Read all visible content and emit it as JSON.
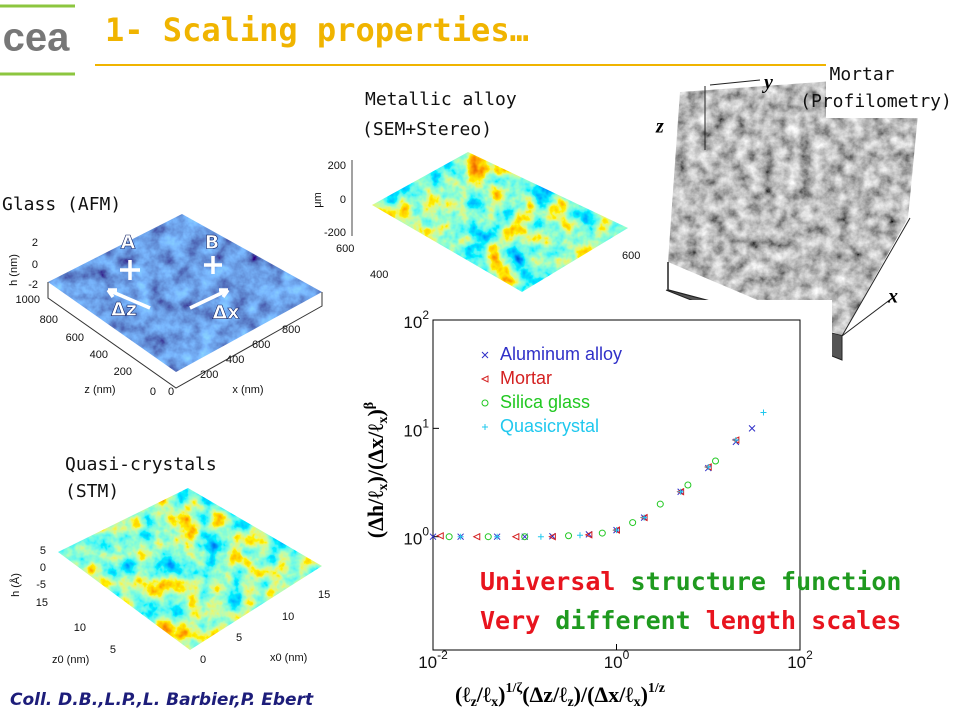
{
  "logo": {
    "text": "cea"
  },
  "header": {
    "title": "1- Scaling properties…"
  },
  "panels": {
    "mortar": {
      "label": [
        "Mortar",
        "(Profilometry)"
      ],
      "axes": [
        "z",
        "y",
        "x"
      ]
    },
    "metallic": {
      "label": [
        "Metallic alloy",
        "(SEM+Stereo)"
      ],
      "unit": "μm",
      "h_ticks": [
        "200",
        "0",
        "-200"
      ],
      "y_ticks": [
        "600",
        "400"
      ],
      "x_ticks": [
        "600"
      ]
    },
    "glass": {
      "label": [
        "Glass (AFM)"
      ],
      "h_label": "h (nm)",
      "h_ticks": [
        "2",
        "0",
        "-2"
      ],
      "z_ticks": [
        "1000",
        "800",
        "600",
        "400",
        "200",
        "0"
      ],
      "z_label": "z (nm)",
      "x_ticks": [
        "0",
        "200",
        "400",
        "600",
        "800"
      ],
      "x_label": "x (nm)",
      "points": [
        "A",
        "B"
      ],
      "deltas": [
        "Δz",
        "Δx"
      ]
    },
    "quasi": {
      "label": [
        "Quasi-crystals",
        "(STM)"
      ],
      "h_label": "h (Å)",
      "h_ticks": [
        "5",
        "0",
        "-5"
      ],
      "z_ticks": [
        "15",
        "10",
        "5"
      ],
      "z_label": "z0 (nm)",
      "x_ticks": [
        "15",
        "10",
        "5",
        "0"
      ],
      "x_label": "x0 (nm)"
    }
  },
  "chart_data": {
    "type": "scatter",
    "xscale": "log",
    "yscale": "log",
    "xlim": [
      0.01,
      100
    ],
    "ylim": [
      0.09,
      100
    ],
    "xticks": [
      {
        "value": 0.01,
        "label": "10",
        "exponent": "-2"
      },
      {
        "value": 1,
        "label": "10",
        "exponent": "0"
      },
      {
        "value": 100,
        "label": "10",
        "exponent": "2"
      }
    ],
    "yticks": [
      {
        "value": 1,
        "label": "10",
        "exponent": "0"
      },
      {
        "value": 10,
        "label": "10",
        "exponent": "1"
      },
      {
        "value": 100,
        "label": "10",
        "exponent": "2"
      }
    ],
    "ylabel": [
      {
        "text": "(Δh/ℓ"
      },
      {
        "text": "x",
        "shift": "sub"
      },
      {
        "text": ")/(Δx/ℓ"
      },
      {
        "text": "x",
        "shift": "sub"
      },
      {
        "text": ")"
      },
      {
        "text": "β",
        "shift": "sup"
      }
    ],
    "xlabel": [
      {
        "text": "(ℓ"
      },
      {
        "text": "z",
        "shift": "sub"
      },
      {
        "text": "/ℓ"
      },
      {
        "text": "x",
        "shift": "sub"
      },
      {
        "text": ")"
      },
      {
        "text": "1/ζ",
        "shift": "sup"
      },
      {
        "text": "(Δz/ℓ"
      },
      {
        "text": "z",
        "shift": "sub"
      },
      {
        "text": ")/(Δx/ℓ"
      },
      {
        "text": "x",
        "shift": "sub"
      },
      {
        "text": ")"
      },
      {
        "text": "1/z",
        "shift": "sup"
      }
    ],
    "legend": "upper left",
    "series": [
      {
        "name": "Aluminum alloy",
        "color": "#3030c8",
        "marker": "x",
        "x": [
          0.01,
          0.02,
          0.05,
          0.1,
          0.2,
          0.5,
          1,
          2,
          5,
          10,
          20,
          30
        ],
        "values": [
          1.0,
          1.0,
          1.0,
          1.0,
          1.01,
          1.05,
          1.15,
          1.5,
          2.6,
          4.3,
          7.5,
          10
        ]
      },
      {
        "name": "Mortar",
        "color": "#d42020",
        "marker": "triangle-left",
        "x": [
          0.012,
          0.03,
          0.08,
          0.2,
          0.5,
          1,
          2,
          5,
          10,
          20
        ],
        "values": [
          1.02,
          1.0,
          1.0,
          1.0,
          1.04,
          1.15,
          1.5,
          2.6,
          4.4,
          7.8
        ]
      },
      {
        "name": "Silica glass",
        "color": "#22c822",
        "marker": "circle",
        "x": [
          0.015,
          0.04,
          0.1,
          0.3,
          0.7,
          1.5,
          3,
          6,
          12
        ],
        "values": [
          1.0,
          1.0,
          1.0,
          1.02,
          1.08,
          1.35,
          2.0,
          3.0,
          5.0
        ]
      },
      {
        "name": "Quasicrystal",
        "color": "#20c8ee",
        "marker": "plus",
        "x": [
          0.02,
          0.05,
          0.15,
          0.4,
          1,
          2,
          5,
          10,
          20,
          40
        ],
        "values": [
          1.0,
          1.0,
          1.0,
          1.03,
          1.15,
          1.5,
          2.6,
          4.4,
          7.8,
          14
        ]
      }
    ]
  },
  "highlights": [
    [
      {
        "text": "Universal",
        "color": "#e8141e"
      },
      {
        "text": " structure function",
        "color": "#1f9a1f"
      }
    ],
    [
      {
        "text": "Very",
        "color": "#e8141e"
      },
      {
        "text": " different",
        "color": "#1f9a1f"
      },
      {
        "text": " length scales",
        "color": "#e8141e"
      }
    ]
  ],
  "credit": "Coll. D.B.,L.P.,L. Barbier,P. Ebert"
}
